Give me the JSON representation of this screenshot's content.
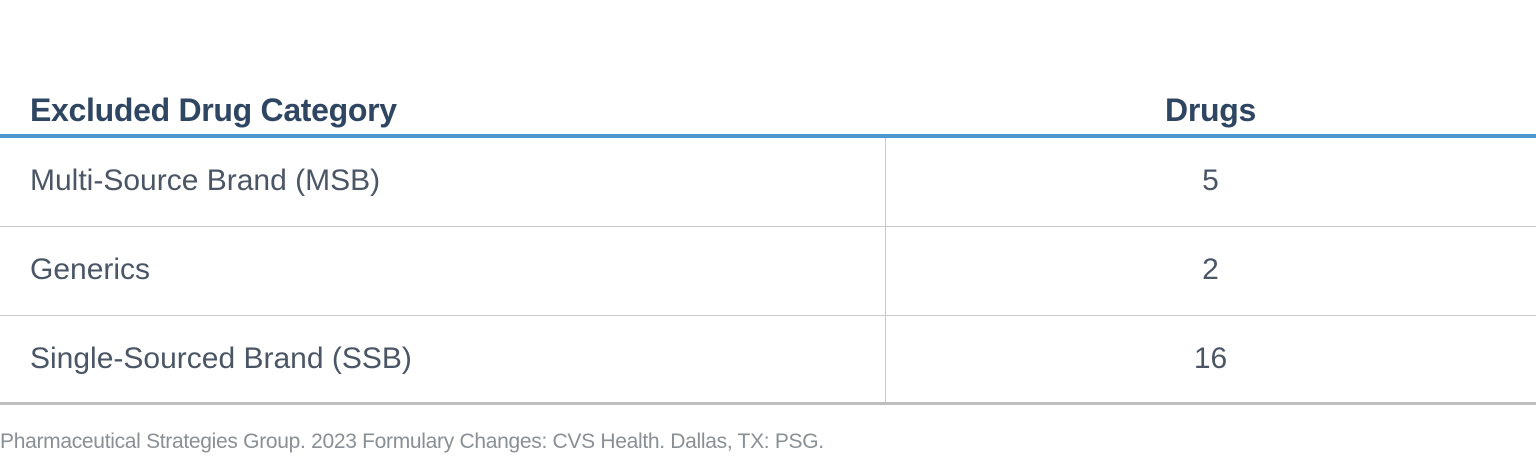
{
  "table": {
    "headers": {
      "category": "Excluded Drug Category",
      "drugs": "Drugs"
    },
    "rows": [
      {
        "category": "Multi-Source Brand (MSB)",
        "drugs": "5"
      },
      {
        "category": "Generics",
        "drugs": "2"
      },
      {
        "category": "Single-Sourced Brand (SSB)",
        "drugs": "16"
      }
    ]
  },
  "source": "Pharmaceutical Strategies Group. 2023 Formulary Changes: CVS Health. Dallas, TX: PSG.",
  "colors": {
    "header_text": "#2e4662",
    "header_rule": "#4a98d0",
    "body_text": "#4a5666",
    "grid": "#c8c8c8",
    "source_text": "#8a8f96"
  }
}
